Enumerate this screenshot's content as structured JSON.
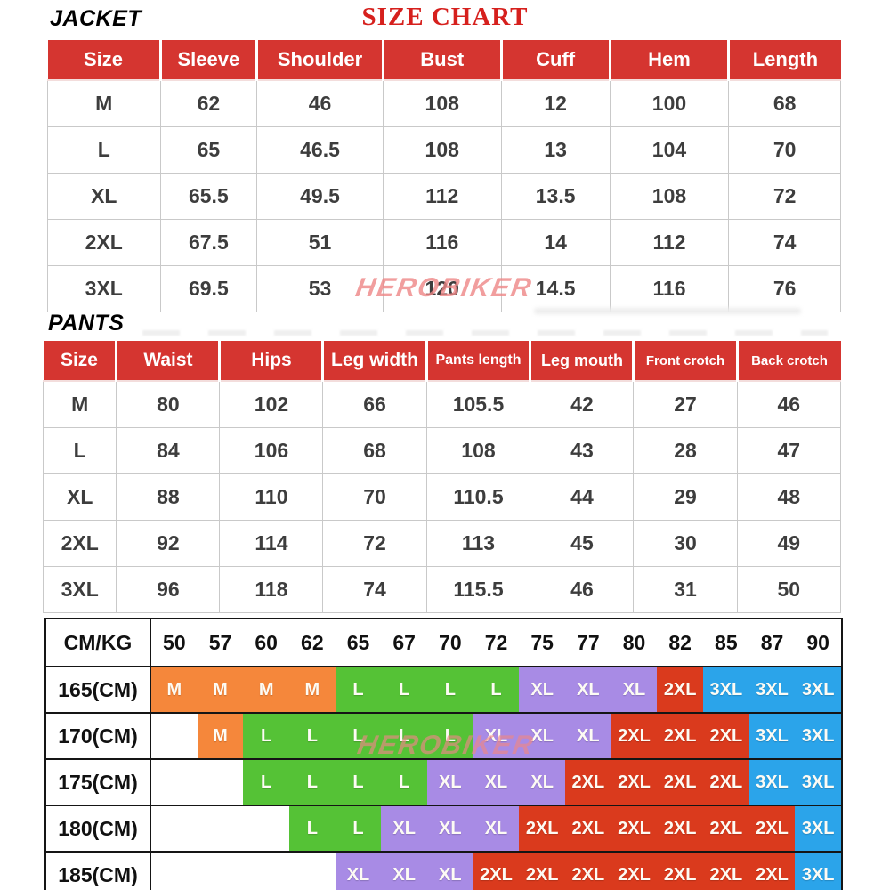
{
  "page": {
    "title": "SIZE CHART",
    "title_color": "#d6201d",
    "header_red": "#d53530"
  },
  "jacket": {
    "label": "JACKET",
    "watermark": "HEROBIKER",
    "headers": [
      "Size",
      "Sleeve",
      "Shoulder",
      "Bust",
      "Cuff",
      "Hem",
      "Length"
    ],
    "rows": [
      [
        "M",
        "62",
        "46",
        "108",
        "12",
        "100",
        "68"
      ],
      [
        "L",
        "65",
        "46.5",
        "108",
        "13",
        "104",
        "70"
      ],
      [
        "XL",
        "65.5",
        "49.5",
        "112",
        "13.5",
        "108",
        "72"
      ],
      [
        "2XL",
        "67.5",
        "51",
        "116",
        "14",
        "112",
        "74"
      ],
      [
        "3XL",
        "69.5",
        "53",
        "120",
        "14.5",
        "116",
        "76"
      ]
    ]
  },
  "pants": {
    "label": "PANTS",
    "headers": [
      "Size",
      "Waist",
      "Hips",
      "Leg width",
      "Pants length",
      "Leg mouth",
      "Front crotch",
      "Back crotch"
    ],
    "rows": [
      [
        "M",
        "80",
        "102",
        "66",
        "105.5",
        "42",
        "27",
        "46"
      ],
      [
        "L",
        "84",
        "106",
        "68",
        "108",
        "43",
        "28",
        "47"
      ],
      [
        "XL",
        "88",
        "110",
        "70",
        "110.5",
        "44",
        "29",
        "48"
      ],
      [
        "2XL",
        "92",
        "114",
        "72",
        "113",
        "45",
        "30",
        "49"
      ],
      [
        "3XL",
        "96",
        "118",
        "74",
        "115.5",
        "46",
        "31",
        "50"
      ]
    ]
  },
  "matrix": {
    "corner_label": "CM/KG",
    "watermark": "HEROBIKER",
    "weights": [
      "50",
      "57",
      "60",
      "62",
      "65",
      "67",
      "70",
      "72",
      "75",
      "77",
      "80",
      "82",
      "85",
      "87",
      "90"
    ],
    "colors": {
      "M": "#f5873b",
      "L": "#55c236",
      "XL": "#a88be5",
      "2XL": "#da3a1d",
      "3XL": "#2ba4ea"
    },
    "rows": [
      {
        "height": "165(CM)",
        "cells": [
          "M",
          "M",
          "M",
          "M",
          "L",
          "L",
          "L",
          "L",
          "XL",
          "XL",
          "XL",
          "2XL",
          "3XL",
          "3XL",
          "3XL"
        ]
      },
      {
        "height": "170(CM)",
        "cells": [
          "",
          "M",
          "L",
          "L",
          "L",
          "L",
          "L",
          "XL",
          "XL",
          "XL",
          "2XL",
          "2XL",
          "2XL",
          "3XL",
          "3XL"
        ]
      },
      {
        "height": "175(CM)",
        "cells": [
          "",
          "",
          "L",
          "L",
          "L",
          "L",
          "XL",
          "XL",
          "XL",
          "2XL",
          "2XL",
          "2XL",
          "2XL",
          "3XL",
          "3XL"
        ]
      },
      {
        "height": "180(CM)",
        "cells": [
          "",
          "",
          "",
          "L",
          "L",
          "XL",
          "XL",
          "XL",
          "2XL",
          "2XL",
          "2XL",
          "2XL",
          "2XL",
          "2XL",
          "3XL"
        ]
      },
      {
        "height": "185(CM)",
        "cells": [
          "",
          "",
          "",
          "",
          "XL",
          "XL",
          "XL",
          "2XL",
          "2XL",
          "2XL",
          "2XL",
          "2XL",
          "2XL",
          "2XL",
          "3XL"
        ]
      }
    ]
  }
}
